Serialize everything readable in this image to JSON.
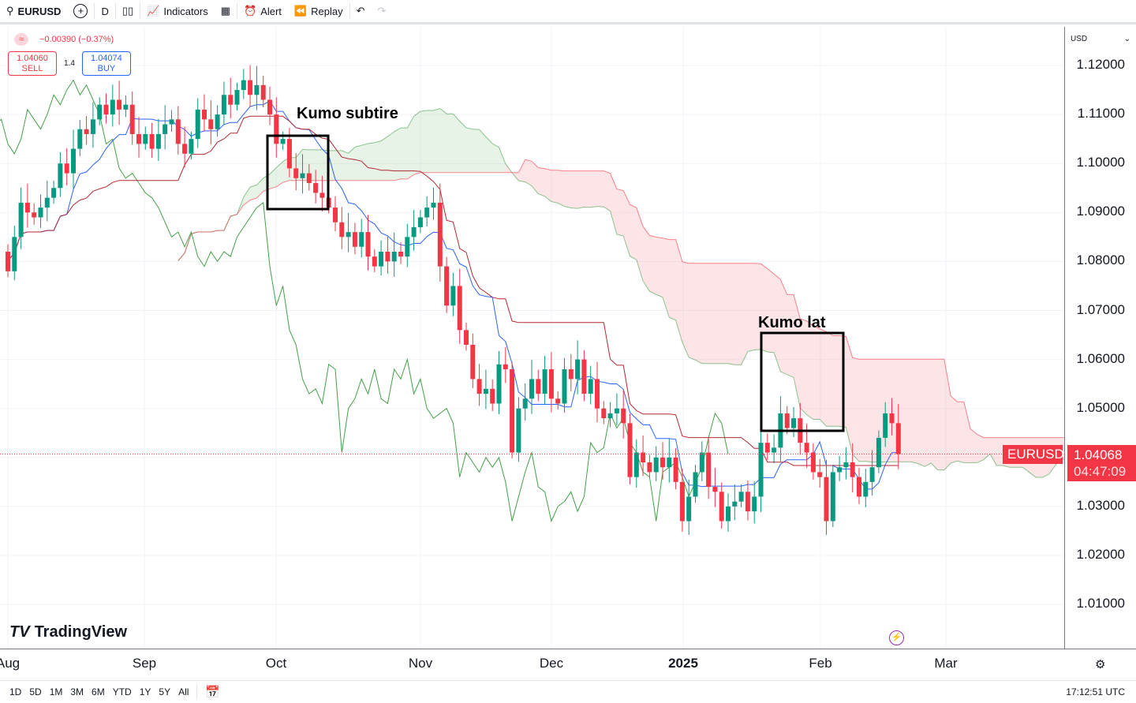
{
  "toolbar": {
    "symbol": "EURUSD",
    "interval": "D",
    "indicators": "Indicators",
    "alert": "Alert",
    "replay": "Replay"
  },
  "legend": {
    "change": "−0.00390 (−0.37%)",
    "sell_price": "1.04060",
    "sell_label": "SELL",
    "spread": "1.4",
    "buy_price": "1.04074",
    "buy_label": "BUY"
  },
  "price_axis": {
    "currency": "USD",
    "labels": [
      "1.12000",
      "1.11000",
      "1.10000",
      "1.09000",
      "1.08000",
      "1.07000",
      "1.06000",
      "1.05000",
      "1.03000",
      "1.02000",
      "1.01000"
    ]
  },
  "price_tag": {
    "symbol": "EURUSD",
    "price": "1.04068",
    "countdown": "04:47:09"
  },
  "time_axis": {
    "labels": [
      "Aug",
      "Sep",
      "Oct",
      "Nov",
      "Dec",
      "2025",
      "Feb",
      "Mar"
    ]
  },
  "annotations": {
    "thin": "Kumo subtire",
    "wide": "Kumo lat"
  },
  "watermark": "TradingView",
  "bottom": {
    "ranges": [
      "1D",
      "5D",
      "1M",
      "3M",
      "6M",
      "YTD",
      "1Y",
      "5Y",
      "All"
    ],
    "clock": "17:12:51 UTC"
  },
  "colors": {
    "up": "#089981",
    "down": "#f23645",
    "tenkan": "#2962ff",
    "kijun": "#b22833",
    "chikou": "#43a047"
  },
  "chart_data": {
    "type": "candlestick",
    "indicator": "Ichimoku",
    "first_open": 1.082,
    "close": [
      1.078,
      1.085,
      1.092,
      1.09,
      1.089,
      1.091,
      1.093,
      1.095,
      1.1,
      1.098,
      1.103,
      1.107,
      1.106,
      1.109,
      1.112,
      1.11,
      1.113,
      1.111,
      1.112,
      1.106,
      1.104,
      1.106,
      1.103,
      1.106,
      1.108,
      1.109,
      1.104,
      1.102,
      1.105,
      1.111,
      1.109,
      1.107,
      1.11,
      1.114,
      1.112,
      1.115,
      1.117,
      1.114,
      1.116,
      1.113,
      1.11,
      1.104,
      1.105,
      1.099,
      1.097,
      1.098,
      1.096,
      1.094,
      1.093,
      1.091,
      1.088,
      1.085,
      1.086,
      1.083,
      1.086,
      1.081,
      1.079,
      1.082,
      1.08,
      1.082,
      1.081,
      1.085,
      1.087,
      1.089,
      1.091,
      1.092,
      1.079,
      1.071,
      1.075,
      1.066,
      1.063,
      1.056,
      1.053,
      1.054,
      1.051,
      1.059,
      1.058,
      1.041,
      1.05,
      1.052,
      1.056,
      1.053,
      1.058,
      1.052,
      1.051,
      1.058,
      1.056,
      1.06,
      1.053,
      1.056,
      1.05,
      1.048,
      1.049,
      1.05,
      1.047,
      1.036,
      1.041,
      1.039,
      1.037,
      1.04,
      1.038,
      1.04,
      1.035,
      1.027,
      1.032,
      1.037,
      1.041,
      1.034,
      1.033,
      1.027,
      1.03,
      1.031,
      1.033,
      1.029,
      1.032,
      1.043,
      1.041,
      1.042,
      1.049,
      1.046,
      1.048,
      1.043,
      1.041,
      1.037,
      1.036,
      1.027,
      1.037,
      1.038,
      1.039,
      1.036,
      1.032,
      1.035,
      1.038,
      1.044,
      1.049,
      1.047,
      1.0407
    ],
    "ylim": [
      1.005,
      1.125
    ]
  }
}
